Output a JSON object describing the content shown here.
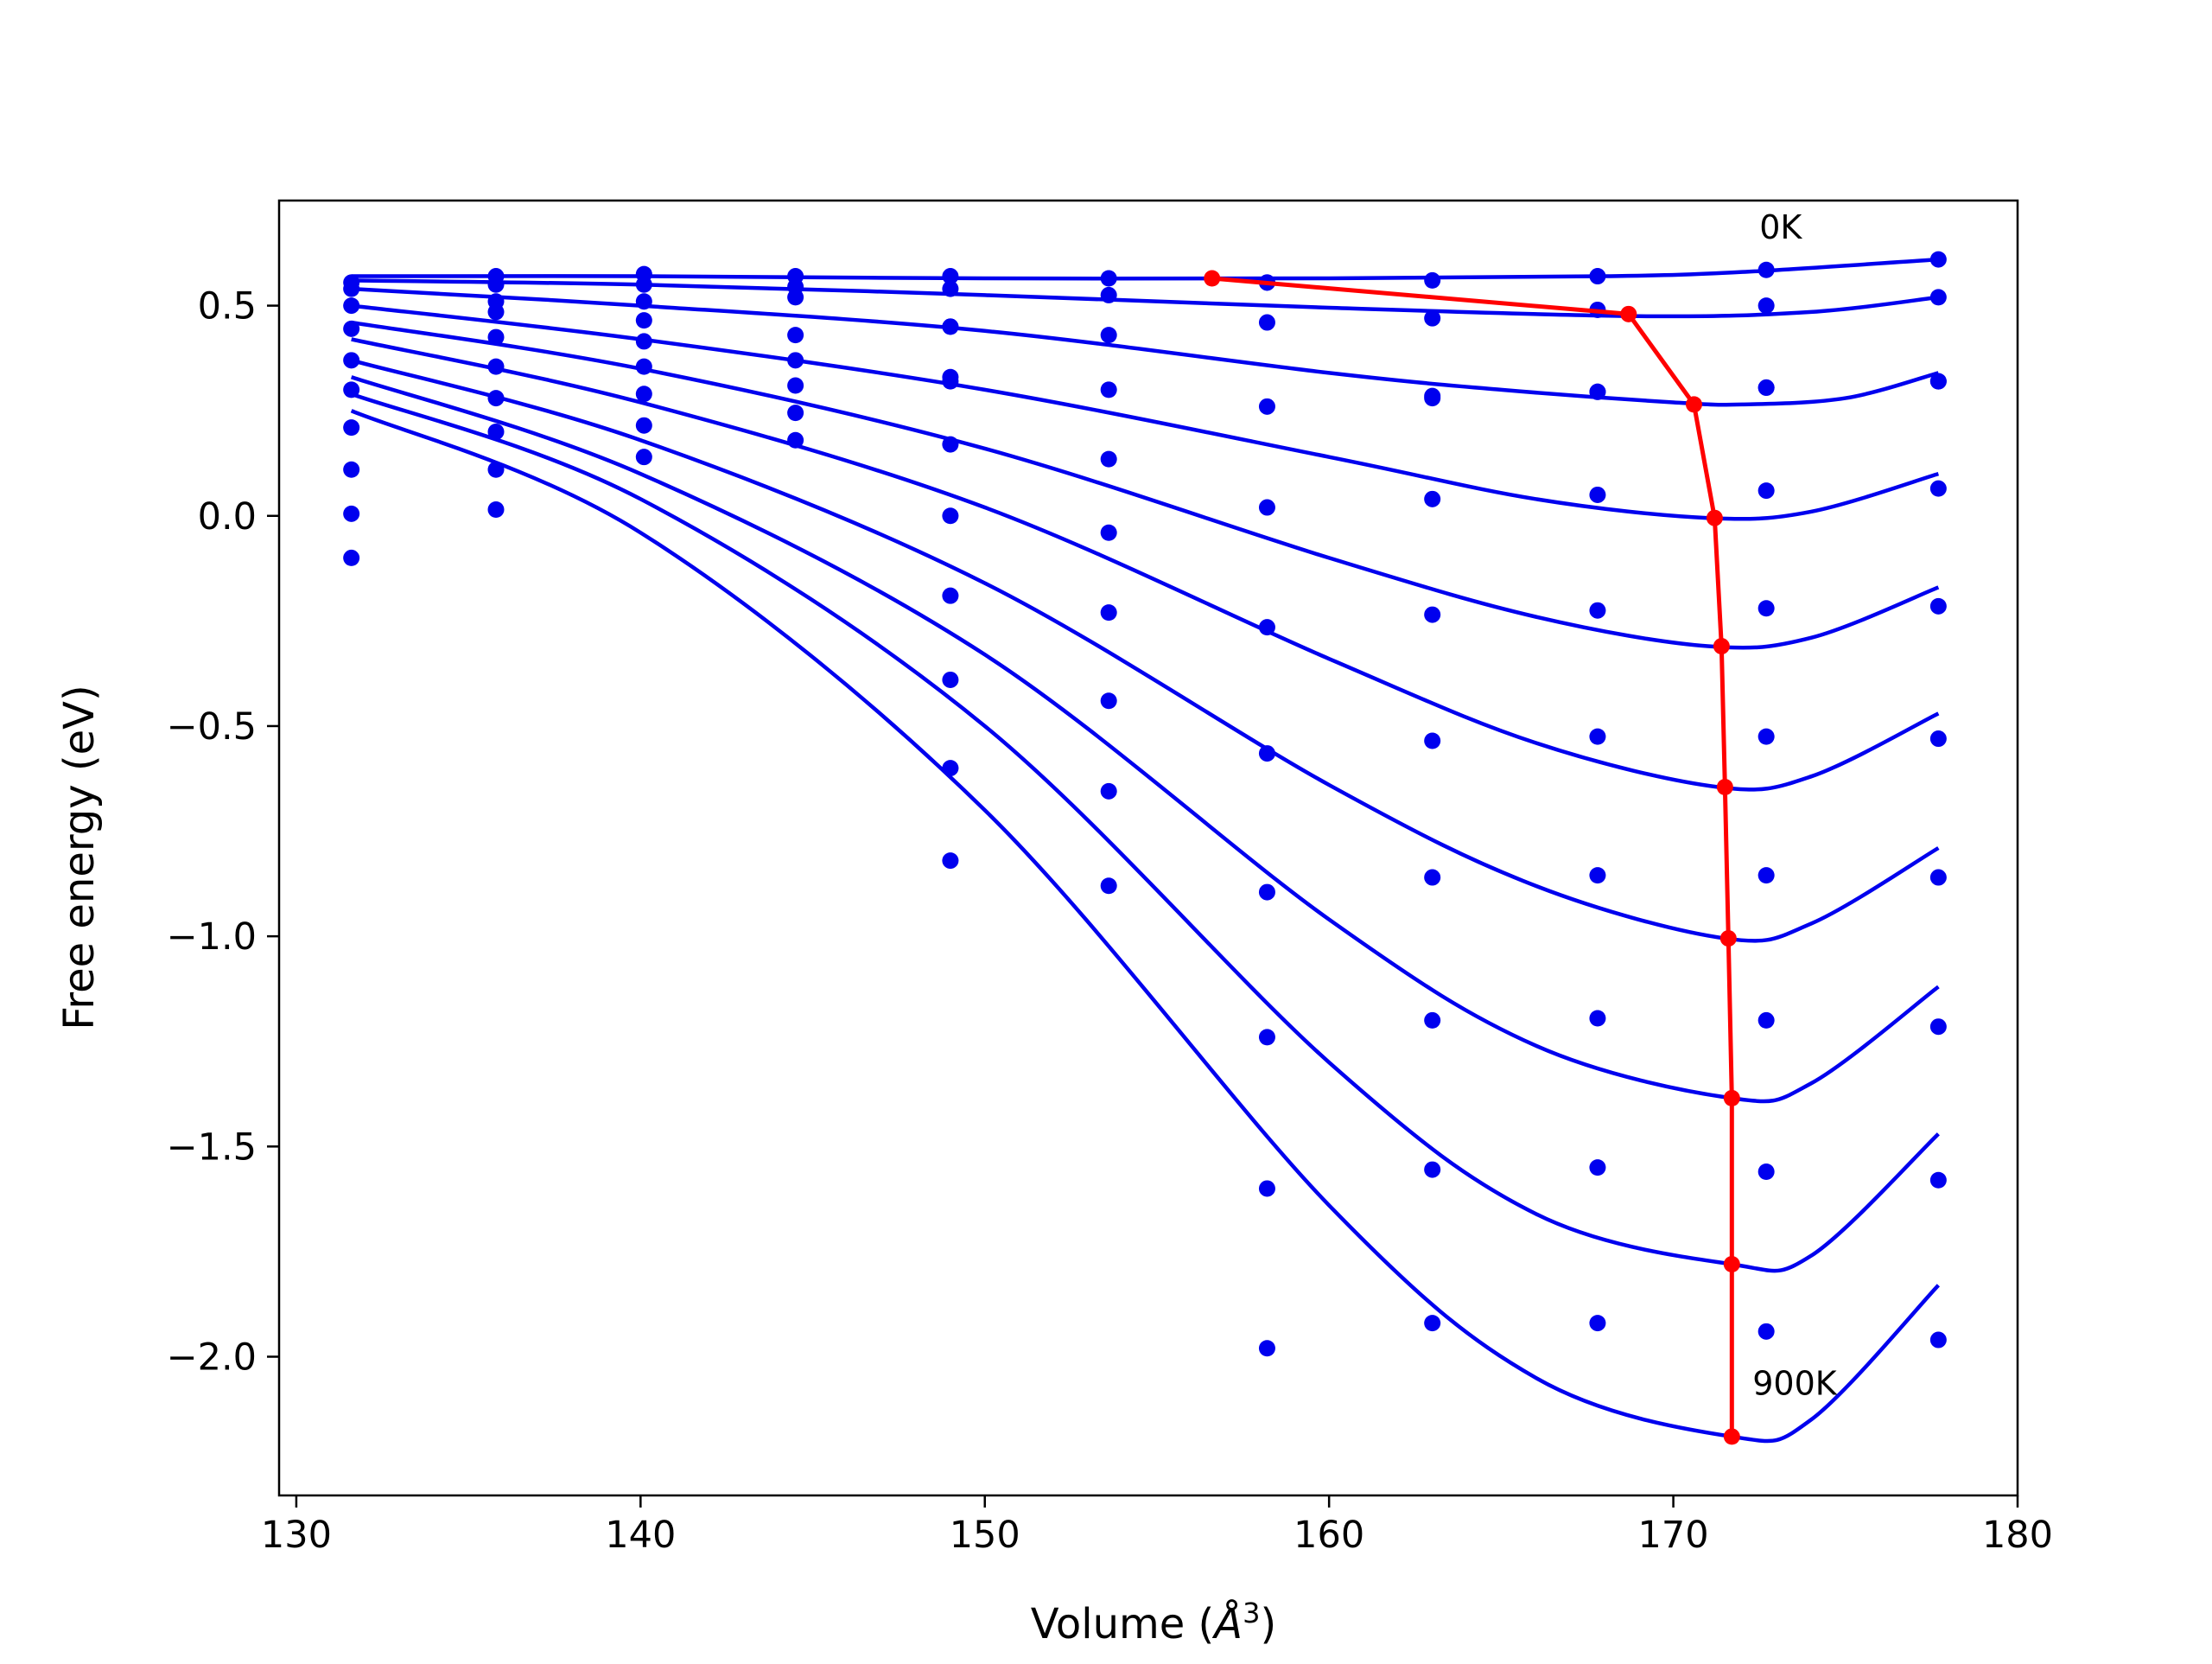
{
  "chart_data": {
    "type": "line",
    "xlabel": "Volume (",
    "xlabel_symbol": "Å",
    "xlabel_power": "3",
    "xlabel_close": ")",
    "ylabel": "Free energy (eV)",
    "xlim": [
      129.5,
      180
    ],
    "ylim": [
      -2.33,
      0.75
    ],
    "x_ticks": [
      130,
      140,
      150,
      160,
      170,
      180
    ],
    "x_tick_labels": [
      "130",
      "140",
      "150",
      "160",
      "170",
      "180"
    ],
    "y_ticks": [
      0.5,
      0.0,
      -0.5,
      -1.0,
      -1.5,
      -2.0
    ],
    "y_tick_labels": [
      "0.5",
      "0.0",
      "−0.5",
      "−1.0",
      "−1.5",
      "−2.0"
    ],
    "grid": false,
    "annotations": [
      {
        "text": "0K",
        "x": 172.5,
        "y": 0.66
      },
      {
        "text": "900K",
        "x": 172.3,
        "y": -2.09
      }
    ],
    "volumes": [
      131.6,
      135.8,
      140.1,
      144.5,
      149.0,
      153.6,
      158.2,
      163.0,
      167.8,
      172.7,
      177.7
    ],
    "series": [
      {
        "fit": [
          [
            131.6,
            0.57
          ],
          [
            140,
            0.57
          ],
          [
            150,
            0.565
          ],
          [
            160,
            0.565
          ],
          [
            168,
            0.57
          ],
          [
            172,
            0.58
          ],
          [
            177.7,
            0.61
          ]
        ],
        "points": [
          0.555,
          0.57,
          0.575,
          0.57,
          0.57,
          0.565,
          0.555,
          0.56,
          0.57,
          0.585,
          0.61
        ]
      },
      {
        "fit": [
          [
            131.6,
            0.56
          ],
          [
            140,
            0.55
          ],
          [
            150,
            0.525
          ],
          [
            160,
            0.495
          ],
          [
            169,
            0.475
          ],
          [
            174,
            0.485
          ],
          [
            177.7,
            0.52
          ]
        ],
        "points": [
          0.54,
          0.55,
          0.55,
          0.545,
          0.54,
          0.525,
          0.555,
          0.47,
          0.49,
          0.5,
          0.52
        ]
      },
      {
        "fit": [
          [
            131.6,
            0.54
          ],
          [
            140,
            0.5
          ],
          [
            150,
            0.44
          ],
          [
            160,
            0.34
          ],
          [
            165,
            0.3
          ],
          [
            170,
            0.27
          ],
          [
            172,
            0.265
          ],
          [
            175,
            0.28
          ],
          [
            177.7,
            0.34
          ]
        ],
        "points": [
          0.5,
          0.51,
          0.51,
          0.52,
          0.45,
          0.43,
          0.46,
          0.28,
          0.295,
          0.305,
          0.32
        ]
      },
      {
        "fit": [
          [
            131.6,
            0.5
          ],
          [
            140,
            0.42
          ],
          [
            150,
            0.3
          ],
          [
            160,
            0.14
          ],
          [
            166,
            0.04
          ],
          [
            171,
            -0.005
          ],
          [
            174,
            0.01
          ],
          [
            177.7,
            0.1
          ]
        ],
        "points": [
          0.445,
          0.485,
          0.465,
          0.43,
          0.45,
          0.3,
          0.26,
          0.285,
          0.295,
          0.305,
          0.32
        ]
      },
      {
        "fit": [
          [
            131.6,
            0.46
          ],
          [
            140,
            0.35
          ],
          [
            150,
            0.16
          ],
          [
            160,
            -0.1
          ],
          [
            166,
            -0.24
          ],
          [
            171,
            -0.31
          ],
          [
            174,
            -0.29
          ],
          [
            177.7,
            -0.17
          ]
        ],
        "points": [
          0.37,
          0.425,
          0.415,
          0.37,
          0.33,
          0.135,
          0.02,
          0.04,
          0.05,
          0.06,
          0.065
        ]
      },
      {
        "fit": [
          [
            131.6,
            0.42
          ],
          [
            140,
            0.27
          ],
          [
            150,
            0.02
          ],
          [
            160,
            -0.34
          ],
          [
            166,
            -0.54
          ],
          [
            171.3,
            -0.645
          ],
          [
            174,
            -0.62
          ],
          [
            177.7,
            -0.47
          ]
        ],
        "points": [
          0.3,
          0.355,
          0.355,
          0.31,
          0.32,
          -0.04,
          -0.265,
          -0.235,
          -0.225,
          -0.22,
          -0.215
        ]
      },
      {
        "fit": [
          [
            131.6,
            0.37
          ],
          [
            140,
            0.18
          ],
          [
            150,
            -0.16
          ],
          [
            160,
            -0.64
          ],
          [
            166,
            -0.88
          ],
          [
            171.5,
            -1.005
          ],
          [
            174,
            -0.97
          ],
          [
            177.7,
            -0.79
          ]
        ],
        "points": [
          0.21,
          0.28,
          0.29,
          0.245,
          0.17,
          -0.23,
          -0.565,
          -0.535,
          -0.525,
          -0.525,
          -0.53
        ]
      },
      {
        "fit": [
          [
            131.6,
            0.33
          ],
          [
            140,
            0.1
          ],
          [
            150,
            -0.33
          ],
          [
            160,
            -0.96
          ],
          [
            166,
            -1.26
          ],
          [
            171.7,
            -1.385
          ],
          [
            174,
            -1.35
          ],
          [
            177.7,
            -1.12
          ]
        ],
        "points": [
          0.11,
          0.2,
          0.215,
          0.18,
          0.0,
          -0.44,
          -0.895,
          -0.86,
          -0.855,
          -0.855,
          -0.86
        ]
      },
      {
        "fit": [
          [
            131.6,
            0.29
          ],
          [
            140,
            0.04
          ],
          [
            150,
            -0.5
          ],
          [
            160,
            -1.3
          ],
          [
            166,
            -1.66
          ],
          [
            171.7,
            -1.78
          ],
          [
            174,
            -1.76
          ],
          [
            177.7,
            -1.47
          ]
        ],
        "points": [
          0.005,
          0.11,
          0.14,
          null,
          -0.19,
          -0.655,
          -1.24,
          -1.2,
          -1.195,
          -1.2,
          -1.215
        ]
      },
      {
        "fit": [
          [
            131.6,
            0.25
          ],
          [
            140,
            -0.04
          ],
          [
            150,
            -0.7
          ],
          [
            160,
            -1.64
          ],
          [
            166,
            -2.05
          ],
          [
            171.7,
            -2.19
          ],
          [
            174,
            -2.15
          ],
          [
            177.7,
            -1.83
          ]
        ],
        "points": [
          -0.1,
          0.015,
          null,
          null,
          -0.39,
          -0.88,
          -1.6,
          -1.555,
          -1.55,
          -1.56,
          -1.58
        ]
      }
    ],
    "extra_points": [
      {
        "x": 149.0,
        "y": -0.6
      },
      {
        "x": 149.0,
        "y": -0.82
      },
      {
        "x": 158.2,
        "y": -1.98
      },
      {
        "x": 163.0,
        "y": -1.92
      },
      {
        "x": 167.8,
        "y": -1.92
      },
      {
        "x": 172.7,
        "y": -1.94
      },
      {
        "x": 177.7,
        "y": -1.96
      }
    ],
    "minimum_path": {
      "x": [
        156.6,
        168.7,
        170.6,
        171.2,
        171.4,
        171.5,
        171.6,
        171.7,
        171.7,
        171.7
      ],
      "y": [
        0.565,
        0.48,
        0.265,
        -0.005,
        -0.31,
        -0.645,
        -1.005,
        -1.385,
        -1.78,
        -2.19
      ]
    },
    "colors": {
      "fit": "#0000ee",
      "points": "#0000ee",
      "minimum_path": "#ff0000",
      "axes": "#000000"
    }
  }
}
